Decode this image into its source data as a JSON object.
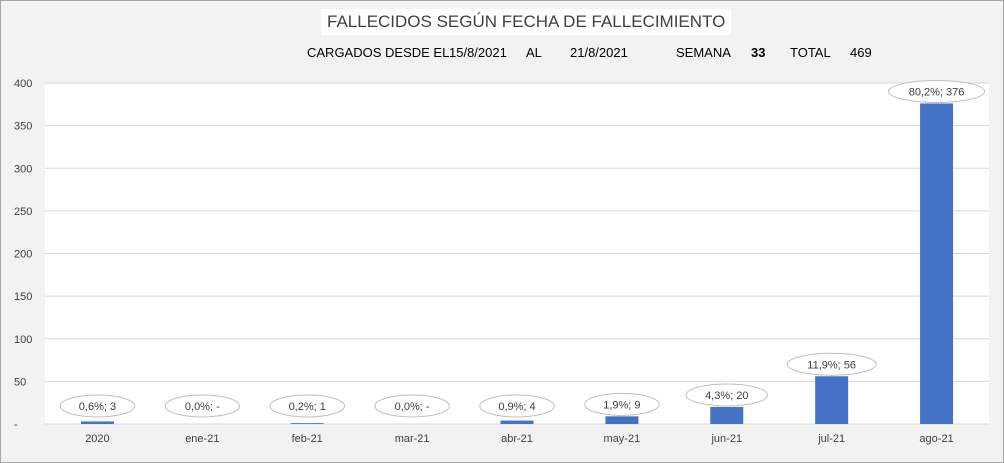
{
  "header": {
    "title": "FALLECIDOS SEGÚN FECHA DE FALLECIMIENTO",
    "loaded_label": "CARGADOS DESDE EL",
    "date_from": "15/8/2021",
    "al_label": "AL",
    "date_to": "21/8/2021",
    "week_label": "SEMANA",
    "week_value": "33",
    "total_label": "TOTAL",
    "total_value": "469"
  },
  "chart_data": {
    "type": "bar",
    "title": "FALLECIDOS SEGÚN FECHA DE FALLECIMIENTO",
    "categories": [
      "2020",
      "ene-21",
      "feb-21",
      "mar-21",
      "abr-21",
      "may-21",
      "jun-21",
      "jul-21",
      "ago-21"
    ],
    "values": [
      3,
      0,
      1,
      0,
      4,
      9,
      20,
      56,
      376
    ],
    "data_labels": [
      "0,6%; 3",
      "0,0%; -",
      "0,2%; 1",
      "0,0%; -",
      "0,9%; 4",
      "1,9%; 9",
      "4,3%; 20",
      "11,9%; 56",
      "80,2%; 376"
    ],
    "ylim": [
      0,
      400
    ],
    "yticks": [
      0,
      50,
      100,
      150,
      200,
      250,
      300,
      350,
      400
    ],
    "ytick_labels": [
      "-",
      "50",
      "100",
      "150",
      "200",
      "250",
      "300",
      "350",
      "400"
    ],
    "bar_color": "#4472c4",
    "grid": true,
    "legend": "none"
  }
}
